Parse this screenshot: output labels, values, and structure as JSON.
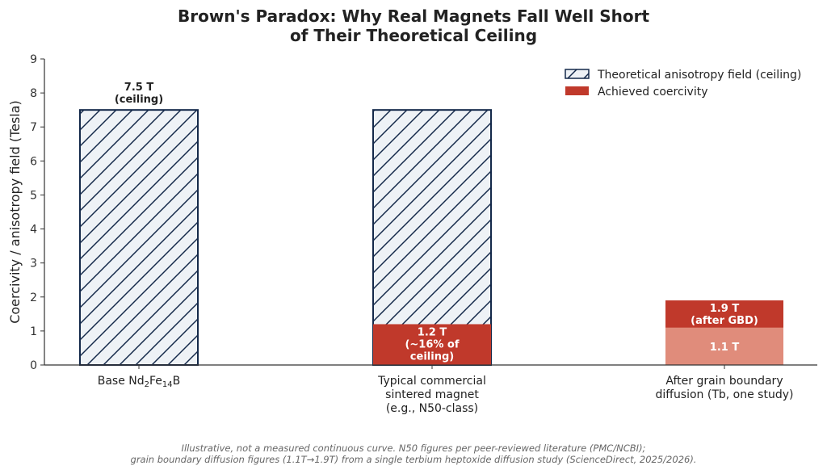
{
  "chart_data": {
    "type": "bar",
    "title_lines": [
      "Brown's Paradox: Why Real Magnets Fall Well Short",
      "of Their Theoretical Ceiling"
    ],
    "ylabel": "Coercivity / anisotropy field (Tesla)",
    "ylim": [
      0,
      9
    ],
    "yticks": [
      0,
      1,
      2,
      3,
      4,
      5,
      6,
      7,
      8,
      9
    ],
    "categories": [
      {
        "lines": [
          [
            {
              "t": "Base Nd"
            },
            {
              "t": "2",
              "sub": true
            },
            {
              "t": "Fe"
            },
            {
              "t": "14",
              "sub": true
            },
            {
              "t": "B"
            }
          ]
        ]
      },
      {
        "lines": [
          [
            {
              "t": "Typical commercial"
            }
          ],
          [
            {
              "t": "sintered magnet"
            }
          ],
          [
            {
              "t": "(e.g., N50-class)"
            }
          ]
        ]
      },
      {
        "lines": [
          [
            {
              "t": "After grain boundary"
            }
          ],
          [
            {
              "t": "diffusion (Tb, one study)"
            }
          ]
        ]
      }
    ],
    "series": [
      {
        "name": "Theoretical anisotropy field (ceiling)",
        "values": [
          7.5,
          7.5,
          null
        ],
        "style": "hatched",
        "color": "#eef2f6",
        "edge": "#14294a"
      },
      {
        "name": "Achieved coercivity",
        "values": [
          null,
          1.2,
          1.9
        ],
        "style": "solid",
        "color": "#c0392b"
      }
    ],
    "baseline_segment": {
      "category_index": 2,
      "value": 1.1,
      "color": "#e08c7b"
    },
    "annotations": [
      {
        "category_index": 0,
        "y": 7.5,
        "position": "above",
        "lines": [
          "7.5 T",
          "(ceiling)"
        ],
        "color": "#222"
      },
      {
        "category_index": 1,
        "y": 1.2,
        "position": "inside-top",
        "lines": [
          "1.2 T",
          "(~16% of",
          "ceiling)"
        ],
        "color": "#ffffff"
      },
      {
        "category_index": 2,
        "y": 1.9,
        "position": "inside-top",
        "lines": [
          "1.9 T",
          "(after GBD)"
        ],
        "color": "#ffffff"
      },
      {
        "category_index": 2,
        "y": 1.1,
        "position": "inside-mid",
        "lines": [
          "1.1 T"
        ],
        "color": "#ffffff"
      }
    ],
    "legend": {
      "placement": "top-right"
    },
    "grid": false
  },
  "footnote_lines": [
    "Illustrative, not a measured continuous curve. N50 figures per peer-reviewed literature (PMC/NCBI);",
    "grain boundary diffusion figures (1.1T→1.9T) from a single terbium heptoxide diffusion study (ScienceDirect, 2025/2026)."
  ]
}
